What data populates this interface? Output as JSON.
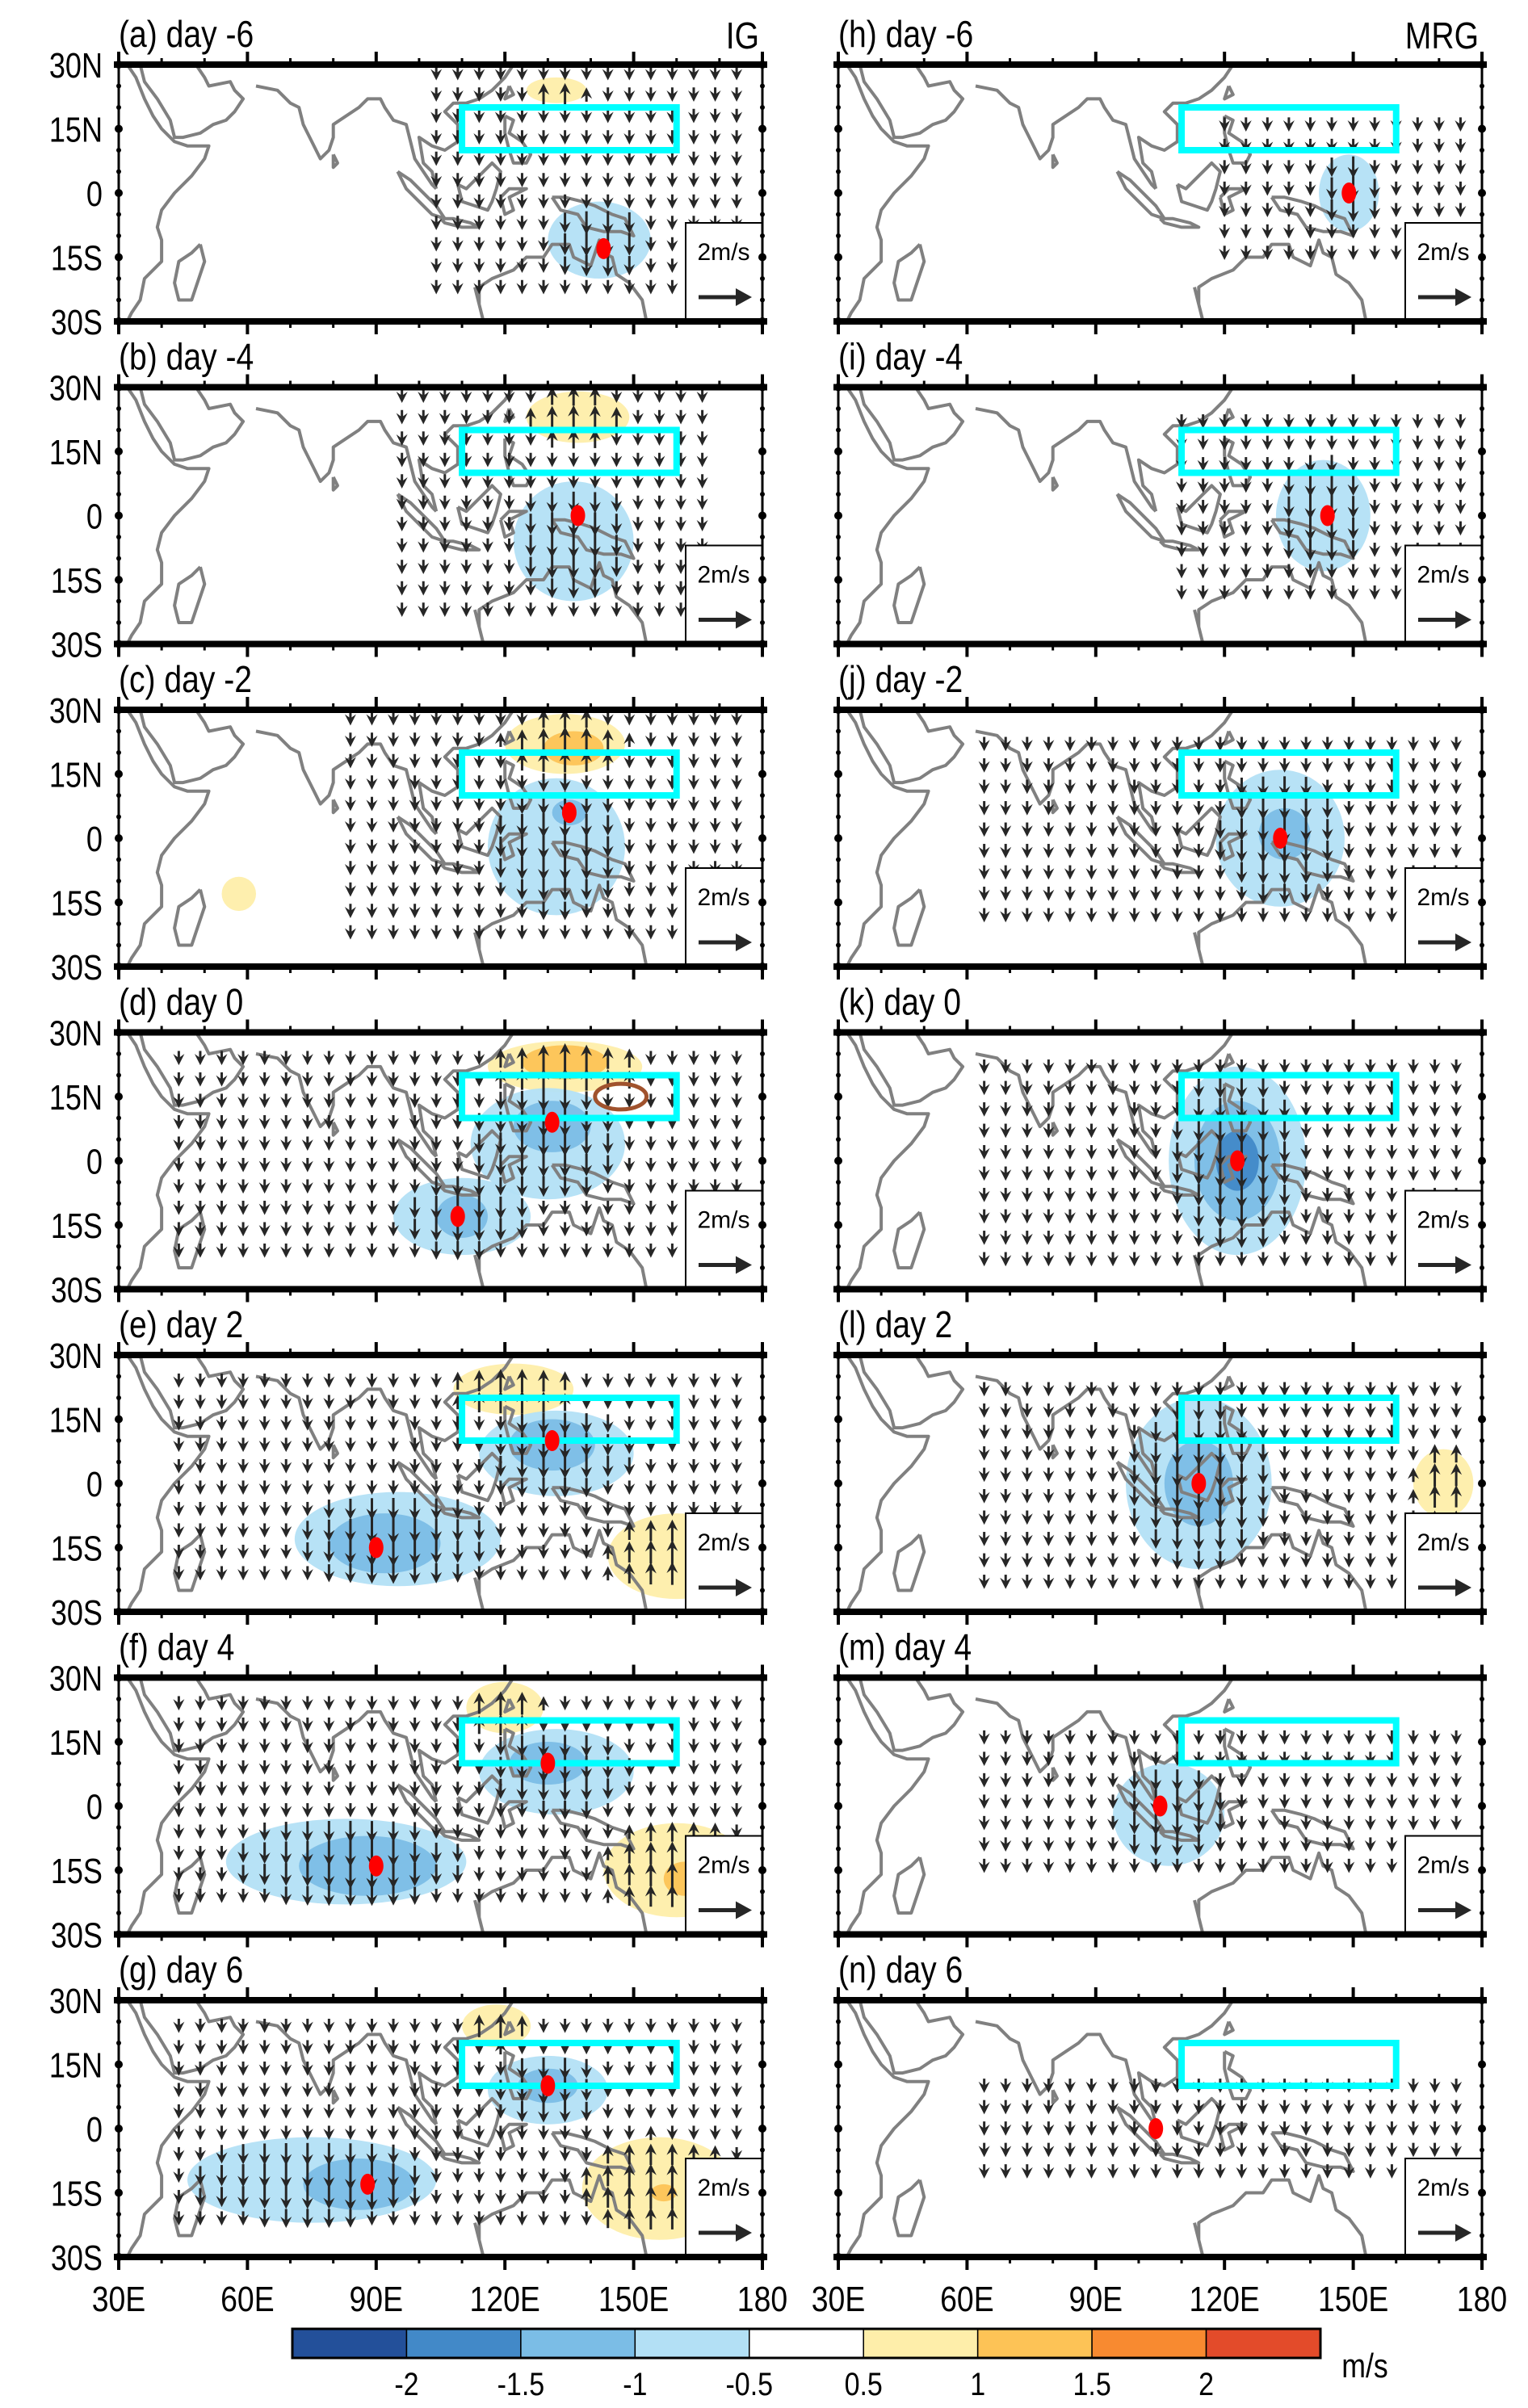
{
  "chart_data": {
    "type": "map-composite",
    "description": "Lagged composites of wind vectors and shaded anomaly field for IG and MRG waves",
    "columns": [
      {
        "name": "IG",
        "label": "IG"
      },
      {
        "name": "MRG",
        "label": "MRG"
      }
    ],
    "panels": [
      {
        "id": "a",
        "title": "(a) day -6",
        "column": "IG",
        "day": -6,
        "centers": [
          [
            143,
            -13
          ]
        ],
        "blobs": [
          {
            "lon": 142,
            "lat": -11,
            "rlon": 12,
            "rlat": 9,
            "value": -0.7
          },
          {
            "lon": 132,
            "lat": 24,
            "rlon": 7,
            "rlat": 3,
            "value": 0.6
          }
        ],
        "vectors": {
          "lon_range": [
            104,
            176
          ],
          "lat_range": [
            -24,
            28
          ],
          "dir": "south"
        }
      },
      {
        "id": "b",
        "title": "(b) day -4",
        "column": "IG",
        "day": -4,
        "centers": [
          [
            137,
            0
          ]
        ],
        "blobs": [
          {
            "lon": 136,
            "lat": -6,
            "rlon": 14,
            "rlat": 14,
            "value": -0.7
          },
          {
            "lon": 137,
            "lat": 23,
            "rlon": 12,
            "rlat": 6,
            "value": 0.6
          }
        ],
        "vectors": {
          "lon_range": [
            96,
            170
          ],
          "lat_range": [
            -24,
            28
          ],
          "dir": "south"
        }
      },
      {
        "id": "c",
        "title": "(c) day -2",
        "column": "IG",
        "day": -2,
        "centers": [
          [
            135,
            6
          ]
        ],
        "blobs": [
          {
            "lon": 132,
            "lat": -2,
            "rlon": 16,
            "rlat": 16,
            "value": -0.7
          },
          {
            "lon": 135,
            "lat": 6,
            "rlon": 4,
            "rlat": 3,
            "value": -1.2
          },
          {
            "lon": 134,
            "lat": 22,
            "rlon": 14,
            "rlat": 7,
            "value": 0.6
          },
          {
            "lon": 136,
            "lat": 21,
            "rlon": 7,
            "rlat": 4,
            "value": 1.2
          },
          {
            "lon": 58,
            "lat": -13,
            "rlon": 4,
            "rlat": 4,
            "value": 0.6
          }
        ],
        "vectors": {
          "lon_range": [
            84,
            176
          ],
          "lat_range": [
            -24,
            28
          ],
          "dir": "south"
        }
      },
      {
        "id": "d",
        "title": "(d) day 0",
        "column": "IG",
        "day": 0,
        "centers": [
          [
            131,
            9
          ],
          [
            109,
            -13
          ]
        ],
        "blobs": [
          {
            "lon": 130,
            "lat": 4,
            "rlon": 18,
            "rlat": 13,
            "value": -0.7
          },
          {
            "lon": 131,
            "lat": 8,
            "rlon": 9,
            "rlat": 6,
            "value": -1.2
          },
          {
            "lon": 110,
            "lat": -13,
            "rlon": 16,
            "rlat": 9,
            "value": -0.7
          },
          {
            "lon": 110,
            "lat": -13,
            "rlon": 6,
            "rlat": 5,
            "value": -1.2
          },
          {
            "lon": 134,
            "lat": 22,
            "rlon": 18,
            "rlat": 6,
            "value": 0.6
          },
          {
            "lon": 134,
            "lat": 23,
            "rlon": 10,
            "rlat": 4,
            "value": 1.2
          }
        ],
        "contours": [
          {
            "lon": 147,
            "lat": 15,
            "rlon": 6,
            "rlat": 3,
            "value": 2
          }
        ],
        "vectors": {
          "lon_range": [
            44,
            176
          ],
          "lat_range": [
            -24,
            24
          ],
          "dir": "south"
        }
      },
      {
        "id": "e",
        "title": "(e) day 2",
        "column": "IG",
        "day": 2,
        "centers": [
          [
            131,
            10
          ],
          [
            90,
            -15
          ]
        ],
        "blobs": [
          {
            "lon": 132,
            "lat": 7,
            "rlon": 18,
            "rlat": 10,
            "value": -0.7
          },
          {
            "lon": 131,
            "lat": 9,
            "rlon": 10,
            "rlat": 6,
            "value": -1.2
          },
          {
            "lon": 95,
            "lat": -13,
            "rlon": 24,
            "rlat": 11,
            "value": -0.7
          },
          {
            "lon": 92,
            "lat": -14,
            "rlon": 13,
            "rlat": 7,
            "value": -1.2
          },
          {
            "lon": 122,
            "lat": 22,
            "rlon": 14,
            "rlat": 6,
            "value": 0.6
          },
          {
            "lon": 160,
            "lat": -17,
            "rlon": 16,
            "rlat": 10,
            "value": 0.6
          }
        ],
        "vectors": {
          "lon_range": [
            44,
            176
          ],
          "lat_range": [
            -24,
            24
          ],
          "dir": "south"
        }
      },
      {
        "id": "f",
        "title": "(f) day 4",
        "column": "IG",
        "day": 4,
        "centers": [
          [
            130,
            10
          ],
          [
            90,
            -14
          ]
        ],
        "blobs": [
          {
            "lon": 132,
            "lat": 8,
            "rlon": 18,
            "rlat": 10,
            "value": -0.7
          },
          {
            "lon": 130,
            "lat": 10,
            "rlon": 9,
            "rlat": 5,
            "value": -1.2
          },
          {
            "lon": 83,
            "lat": -13,
            "rlon": 28,
            "rlat": 10,
            "value": -0.7
          },
          {
            "lon": 88,
            "lat": -14,
            "rlon": 16,
            "rlat": 7,
            "value": -1.2
          },
          {
            "lon": 120,
            "lat": 23,
            "rlon": 9,
            "rlat": 6,
            "value": 0.6
          },
          {
            "lon": 160,
            "lat": -15,
            "rlon": 17,
            "rlat": 11,
            "value": 0.6
          },
          {
            "lon": 162,
            "lat": -17,
            "rlon": 5,
            "rlat": 4,
            "value": 1.2
          }
        ],
        "vectors": {
          "lon_range": [
            44,
            176
          ],
          "lat_range": [
            -24,
            24
          ],
          "dir": "south"
        }
      },
      {
        "id": "g",
        "title": "(g) day 6",
        "column": "IG",
        "day": 6,
        "centers": [
          [
            130,
            10
          ],
          [
            88,
            -13
          ]
        ],
        "blobs": [
          {
            "lon": 130,
            "lat": 9,
            "rlon": 14,
            "rlat": 8,
            "value": -0.7
          },
          {
            "lon": 130,
            "lat": 10,
            "rlon": 7,
            "rlat": 4,
            "value": -1.2
          },
          {
            "lon": 75,
            "lat": -12,
            "rlon": 29,
            "rlat": 10,
            "value": -0.7
          },
          {
            "lon": 86,
            "lat": -13,
            "rlon": 13,
            "rlat": 6,
            "value": -1.2
          },
          {
            "lon": 118,
            "lat": 24,
            "rlon": 8,
            "rlat": 5,
            "value": 0.6
          },
          {
            "lon": 156,
            "lat": -14,
            "rlon": 18,
            "rlat": 12,
            "value": 0.6
          },
          {
            "lon": 157,
            "lat": -15,
            "rlon": 3,
            "rlat": 2,
            "value": 1.2
          }
        ],
        "vectors": {
          "lon_range": [
            44,
            176
          ],
          "lat_range": [
            -24,
            24
          ],
          "dir": "south"
        }
      },
      {
        "id": "h",
        "title": "(h) day -6",
        "column": "MRG",
        "day": -6,
        "centers": [
          [
            149,
            0
          ]
        ],
        "blobs": [
          {
            "lon": 149,
            "lat": 0,
            "rlon": 7,
            "rlat": 9,
            "value": -0.7
          }
        ],
        "vectors": {
          "lon_range": [
            120,
            176
          ],
          "lat_range": [
            -18,
            16
          ],
          "dir": "south"
        }
      },
      {
        "id": "i",
        "title": "(i) day -4",
        "column": "MRG",
        "day": -4,
        "centers": [
          [
            144,
            0
          ]
        ],
        "blobs": [
          {
            "lon": 143,
            "lat": 0,
            "rlon": 11,
            "rlat": 13,
            "value": -0.7
          }
        ],
        "vectors": {
          "lon_range": [
            110,
            176
          ],
          "lat_range": [
            -18,
            22
          ],
          "dir": "south"
        }
      },
      {
        "id": "j",
        "title": "(j) day -2",
        "column": "MRG",
        "day": -2,
        "centers": [
          [
            133,
            0
          ]
        ],
        "blobs": [
          {
            "lon": 133,
            "lat": 0,
            "rlon": 15,
            "rlat": 16,
            "value": -0.7
          },
          {
            "lon": 134,
            "lat": 1,
            "rlon": 6,
            "rlat": 6,
            "value": -1.2
          }
        ],
        "vectors": {
          "lon_range": [
            64,
            176
          ],
          "lat_range": [
            -18,
            22
          ],
          "dir": "south"
        }
      },
      {
        "id": "k",
        "title": "(k) day 0",
        "column": "MRG",
        "day": 0,
        "centers": [
          [
            123,
            0
          ]
        ],
        "blobs": [
          {
            "lon": 123,
            "lat": 0,
            "rlon": 16,
            "rlat": 22,
            "value": -0.7
          },
          {
            "lon": 123,
            "lat": 0,
            "rlon": 10,
            "rlat": 14,
            "value": -1.2
          },
          {
            "lon": 123,
            "lat": 0,
            "rlon": 5,
            "rlat": 7,
            "value": -1.7
          }
        ],
        "vectors": {
          "lon_range": [
            64,
            176
          ],
          "lat_range": [
            -24,
            22
          ],
          "dir": "south"
        }
      },
      {
        "id": "l",
        "title": "(l) day 2",
        "column": "MRG",
        "day": 2,
        "centers": [
          [
            114,
            0
          ]
        ],
        "blobs": [
          {
            "lon": 114,
            "lat": 0,
            "rlon": 17,
            "rlat": 20,
            "value": -0.7
          },
          {
            "lon": 114,
            "lat": 0,
            "rlon": 8,
            "rlat": 10,
            "value": -1.2
          },
          {
            "lon": 171,
            "lat": 0,
            "rlon": 7,
            "rlat": 8,
            "value": 0.6
          }
        ],
        "vectors": {
          "lon_range": [
            64,
            176
          ],
          "lat_range": [
            -24,
            22
          ],
          "dir": "south"
        }
      },
      {
        "id": "m",
        "title": "(m) day 4",
        "column": "MRG",
        "day": 4,
        "centers": [
          [
            105,
            0
          ]
        ],
        "blobs": [
          {
            "lon": 107,
            "lat": -2,
            "rlon": 13,
            "rlat": 12,
            "value": -0.7
          }
        ],
        "vectors": {
          "lon_range": [
            64,
            176
          ],
          "lat_range": [
            -18,
            16
          ],
          "dir": "south"
        }
      },
      {
        "id": "n",
        "title": "(n) day 6",
        "column": "MRG",
        "day": 6,
        "centers": [
          [
            104,
            0
          ]
        ],
        "blobs": [],
        "vectors": {
          "lon_range": [
            64,
            176
          ],
          "lat_range": [
            -12,
            10
          ],
          "dir": "south"
        }
      }
    ],
    "target_box": {
      "lon": [
        110,
        160
      ],
      "lat": [
        10,
        20
      ],
      "color": "#00FFFF"
    },
    "center_marker_color": "#FF0000",
    "contour_color": "#A0522D",
    "x_axis": {
      "range": [
        30,
        180
      ],
      "ticks": [
        30,
        60,
        90,
        120,
        150,
        180
      ],
      "tick_labels": [
        "30E",
        "60E",
        "90E",
        "120E",
        "150E",
        "180"
      ]
    },
    "y_axis": {
      "range": [
        -30,
        30
      ],
      "ticks": [
        30,
        15,
        0,
        -15,
        -30
      ],
      "tick_labels": [
        "30N",
        "15N",
        "0",
        "15S",
        "30S"
      ]
    },
    "reference_vector": {
      "label": "2m/s",
      "value": 2,
      "units": "m/s"
    },
    "colorbar": {
      "units": "m/s",
      "levels": [
        -2,
        -1.5,
        -1,
        -0.5,
        0.5,
        1,
        1.5,
        2
      ],
      "tick_labels": [
        "-2",
        "-1.5",
        "-1",
        "-0.5",
        "0.5",
        "1",
        "1.5",
        "2"
      ],
      "colors": [
        "#23509A",
        "#4289C8",
        "#7BBDE6",
        "#B3E0F5",
        "#FFFFFF",
        "#FEEEAA",
        "#FDC356",
        "#F88A30",
        "#E34B2A"
      ]
    }
  }
}
